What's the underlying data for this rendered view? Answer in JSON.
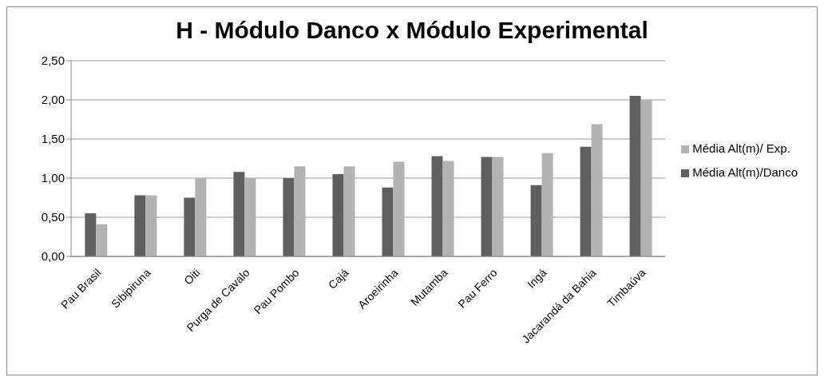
{
  "chart_data": {
    "type": "bar",
    "title": "H - Módulo Danco x Módulo Experimental",
    "categories": [
      "Pau Brasil",
      "Sibipiruna",
      "Oiti",
      "Purga de Cavalo",
      "Pau Pombo",
      "Cajá",
      "Aroeirinha",
      "Mutamba",
      "Pau Ferro",
      "Ingá",
      "Jacarandá da Bahia",
      "Timbaúva"
    ],
    "series": [
      {
        "name": "Média Alt(m)/Danco",
        "color": "#5f5f5f",
        "values": [
          0.55,
          0.78,
          0.75,
          1.08,
          1.0,
          1.05,
          0.88,
          1.28,
          1.27,
          0.91,
          1.4,
          2.05
        ]
      },
      {
        "name": "Média Alt(m)/ Exp.",
        "color": "#b3b3b3",
        "values": [
          0.41,
          0.78,
          1.0,
          1.0,
          1.15,
          1.15,
          1.21,
          1.22,
          1.27,
          1.32,
          1.69,
          2.0
        ]
      }
    ],
    "ylim": [
      0,
      2.5
    ],
    "yticks": [
      {
        "value": 0,
        "label": "0,00"
      },
      {
        "value": 0.5,
        "label": "0,50"
      },
      {
        "value": 1,
        "label": "1,00"
      },
      {
        "value": 1.5,
        "label": "1,50"
      },
      {
        "value": 2,
        "label": "2,00"
      },
      {
        "value": 2.5,
        "label": "2,50"
      }
    ],
    "grid": "y",
    "legend": "right"
  }
}
